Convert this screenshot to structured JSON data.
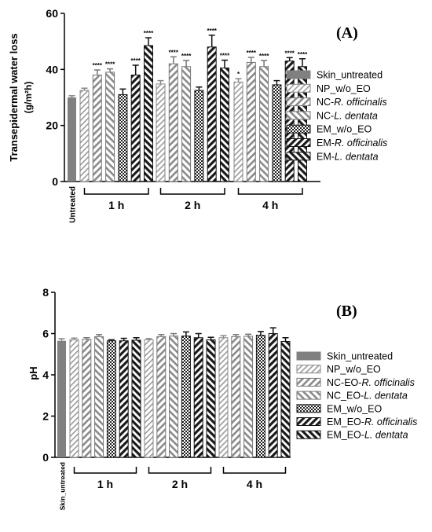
{
  "chart_data": [
    {
      "type": "bar",
      "panel_label": "(A)",
      "ylabel": "Transepidermal water loss",
      "ylabel_unit": "(g/m²h)",
      "ylim": [
        0,
        60
      ],
      "yticks": [
        0,
        20,
        40,
        60
      ],
      "control": {
        "label": "Untreated",
        "value": 30,
        "err": 0.6
      },
      "groups": [
        {
          "label": "1 h",
          "values": [
            32.5,
            38,
            39,
            31,
            38,
            48.5
          ],
          "err": [
            0.8,
            1.8,
            1.2,
            2,
            3.5,
            2.8
          ],
          "stars": [
            "",
            "****",
            "****",
            "",
            "****",
            "****"
          ]
        },
        {
          "label": "2 h",
          "values": [
            34.8,
            42,
            41,
            32.5,
            48,
            40.5
          ],
          "err": [
            1.2,
            2.5,
            2.2,
            1.2,
            4.2,
            2.8
          ],
          "stars": [
            "",
            "****",
            "****",
            "",
            "****",
            "****"
          ]
        },
        {
          "label": "4 h",
          "values": [
            35.5,
            42.5,
            41,
            34.5,
            43,
            41
          ],
          "err": [
            1.2,
            1.8,
            2.2,
            1.5,
            1.2,
            2.8
          ],
          "stars": [
            "*",
            "****",
            "****",
            "",
            "****",
            "****"
          ]
        }
      ],
      "legend": [
        {
          "text": "Skin_untreated",
          "italic": ""
        },
        {
          "text": "NP_w/o_EO",
          "italic": ""
        },
        {
          "text": "NC-",
          "italic": "R. officinalis"
        },
        {
          "text": "NC-",
          "italic": "L. dentata"
        },
        {
          "text": "EM_w/o_EO",
          "italic": ""
        },
        {
          "text": "EM-",
          "italic": "R. officinalis"
        },
        {
          "text": "EM-",
          "italic": "L. dentata"
        }
      ]
    },
    {
      "type": "bar",
      "panel_label": "(B)",
      "ylabel": "pH",
      "ylabel_unit": "",
      "ylim": [
        0,
        8
      ],
      "yticks": [
        0,
        2,
        4,
        6,
        8
      ],
      "control": {
        "label": "Skin_untreated",
        "value": 5.65,
        "err": 0.1
      },
      "groups": [
        {
          "label": "1 h",
          "values": [
            5.7,
            5.72,
            5.85,
            5.65,
            5.65,
            5.68
          ],
          "err": [
            0.08,
            0.08,
            0.1,
            0.05,
            0.12,
            0.12
          ],
          "stars": [
            "",
            "",
            "",
            "",
            "",
            ""
          ]
        },
        {
          "label": "2 h",
          "values": [
            5.7,
            5.85,
            5.88,
            5.88,
            5.8,
            5.7
          ],
          "err": [
            0.06,
            0.1,
            0.12,
            0.2,
            0.2,
            0.12
          ],
          "stars": [
            "",
            "",
            "",
            "",
            "",
            ""
          ]
        },
        {
          "label": "4 h",
          "values": [
            5.8,
            5.85,
            5.87,
            5.92,
            6.0,
            5.62
          ],
          "err": [
            0.1,
            0.1,
            0.1,
            0.18,
            0.28,
            0.18
          ],
          "stars": [
            "",
            "",
            "",
            "",
            "",
            ""
          ]
        }
      ],
      "legend": [
        {
          "text": "Skin_untreated",
          "italic": ""
        },
        {
          "text": "NP_w/o_EO",
          "italic": ""
        },
        {
          "text": "NC-EO-",
          "italic": "R. officinalis"
        },
        {
          "text": "NC_EO-",
          "italic": "L. dentata"
        },
        {
          "text": "EM_w/o_EO",
          "italic": ""
        },
        {
          "text": "EM_EO-",
          "italic": "R. officinalis"
        },
        {
          "text": "EM_EO-",
          "italic": "L. dentata"
        }
      ]
    }
  ],
  "colors": {
    "control": "#808080",
    "stroke": "#000000",
    "series": [
      "#a0a0a0",
      "#999999",
      "#a8a8a8",
      "#2a2a2a",
      "#1a1a1a",
      "#1a1a1a"
    ]
  }
}
